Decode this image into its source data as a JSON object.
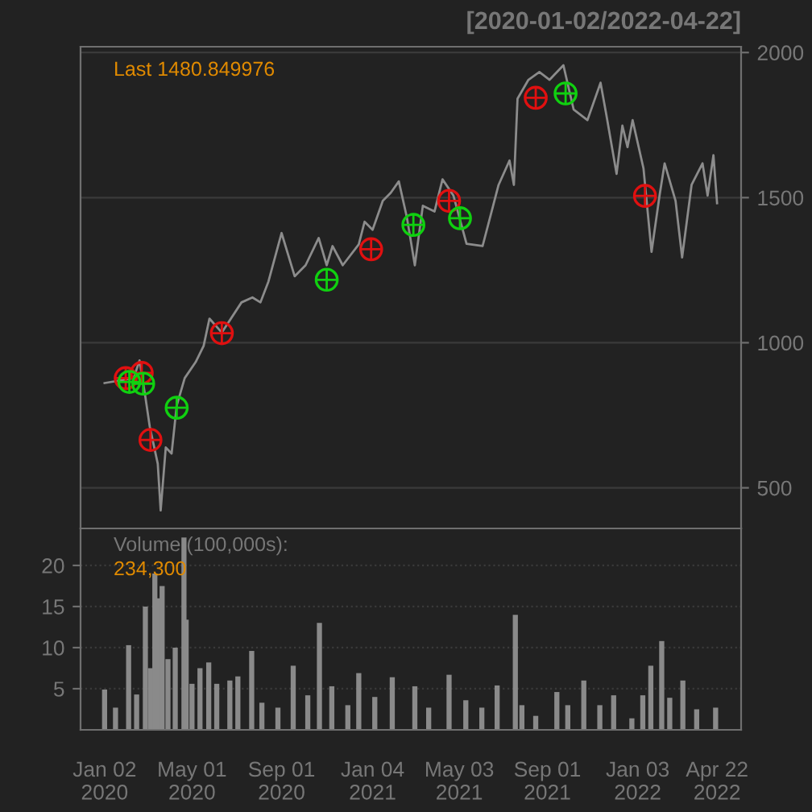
{
  "chart_data": [
    {
      "type": "line",
      "title": "[2020-01-02/2022-04-22]",
      "annotations": [
        "Last 1480.849976"
      ],
      "series": [
        {
          "type": "line",
          "color": "#8c8c8c",
          "x": [
            "2020-01-02",
            "2020-02-11",
            "2020-02-19",
            "2020-02-27",
            "2020-03-04",
            "2020-03-15",
            "2020-03-19",
            "2020-03-26",
            "2020-04-03",
            "2020-04-10",
            "2020-04-21",
            "2020-05-06",
            "2020-05-17",
            "2020-05-25",
            "2020-06-11",
            "2020-07-08",
            "2020-07-23",
            "2020-08-03",
            "2020-08-14",
            "2020-09-01",
            "2020-09-19",
            "2020-10-04",
            "2020-10-22",
            "2020-11-02",
            "2020-11-10",
            "2020-11-24",
            "2020-12-16",
            "2020-12-24",
            "2021-01-04",
            "2021-01-18",
            "2021-01-29",
            "2021-02-09",
            "2021-02-20",
            "2021-03-03",
            "2021-03-14",
            "2021-03-30",
            "2021-04-10",
            "2021-04-25",
            "2021-05-13",
            "2021-06-04",
            "2021-06-26",
            "2021-07-11",
            "2021-07-17",
            "2021-07-22",
            "2021-08-06",
            "2021-08-21",
            "2021-09-04",
            "2021-09-23",
            "2021-10-07",
            "2021-10-26",
            "2021-11-13",
            "2021-11-21",
            "2021-12-05",
            "2021-12-13",
            "2021-12-20",
            "2021-12-27",
            "2022-01-11",
            "2022-01-22",
            "2022-02-02",
            "2022-02-09",
            "2022-02-24",
            "2022-03-05",
            "2022-03-18",
            "2022-04-02",
            "2022-04-09",
            "2022-04-17",
            "2022-04-22"
          ],
          "values": [
            861,
            878,
            939,
            813,
            711,
            583,
            422,
            639,
            618,
            783,
            878,
            933,
            989,
            1083,
            1035,
            1139,
            1156,
            1139,
            1211,
            1378,
            1229,
            1267,
            1361,
            1267,
            1333,
            1267,
            1339,
            1417,
            1389,
            1489,
            1517,
            1556,
            1433,
            1267,
            1472,
            1452,
            1563,
            1507,
            1341,
            1333,
            1544,
            1628,
            1544,
            1841,
            1906,
            1933,
            1906,
            1956,
            1804,
            1767,
            1896,
            1785,
            1582,
            1748,
            1674,
            1767,
            1600,
            1313,
            1507,
            1618,
            1489,
            1294,
            1544,
            1618,
            1507,
            1646,
            1481
          ]
        },
        {
          "type": "scatter",
          "marker": "circle",
          "color": "#e01010",
          "x": [
            "2020-01-31",
            "2020-02-22",
            "2020-03-05",
            "2020-06-11",
            "2021-01-02",
            "2021-04-19",
            "2021-08-16",
            "2022-01-13"
          ],
          "values": [
            878,
            896,
            665,
            1033,
            1322,
            1489,
            1844,
            1506
          ]
        },
        {
          "type": "scatter",
          "marker": "circle",
          "color": "#10d010",
          "x": [
            "2020-02-05",
            "2020-02-24",
            "2020-04-10",
            "2020-11-02",
            "2021-03-01",
            "2021-05-04",
            "2021-09-26"
          ],
          "values": [
            865,
            859,
            776,
            1217,
            1406,
            1429,
            1859
          ]
        }
      ],
      "xlim": [
        "2019-11-30",
        "2022-05-25"
      ],
      "ylim": [
        360,
        2020
      ],
      "yticks": [
        500,
        1000,
        1500,
        2000
      ],
      "grid": "y",
      "tick_labels": "y"
    },
    {
      "type": "bar",
      "annotations": [
        "Volume (100,000s):",
        "234,300"
      ],
      "color": "#8a8a8a",
      "x": [
        "2020-01-02",
        "2020-01-17",
        "2020-02-04",
        "2020-02-15",
        "2020-02-27",
        "2020-03-05",
        "2020-03-11",
        "2020-03-15",
        "2020-03-21",
        "2020-03-29",
        "2020-04-08",
        "2020-04-20",
        "2020-04-23",
        "2020-05-01",
        "2020-05-12",
        "2020-05-24",
        "2020-06-04",
        "2020-06-22",
        "2020-07-03",
        "2020-07-22",
        "2020-08-05",
        "2020-08-27",
        "2020-09-17",
        "2020-10-07",
        "2020-10-23",
        "2020-11-09",
        "2020-12-01",
        "2020-12-16",
        "2021-01-07",
        "2021-01-31",
        "2021-03-03",
        "2021-03-22",
        "2021-04-19",
        "2021-05-12",
        "2021-06-03",
        "2021-06-24",
        "2021-07-19",
        "2021-07-28",
        "2021-08-16",
        "2021-09-14",
        "2021-09-29",
        "2021-10-21",
        "2021-11-12",
        "2021-12-01",
        "2021-12-26",
        "2022-01-10",
        "2022-01-21",
        "2022-02-05",
        "2022-02-16",
        "2022-03-06",
        "2022-03-25",
        "2022-04-20"
      ],
      "values": [
        4.9,
        2.7,
        10.3,
        4.3,
        15,
        7.5,
        19,
        16,
        17.5,
        8.6,
        10,
        23.4,
        13.4,
        5.6,
        7.5,
        8.2,
        5.6,
        6,
        6.5,
        9.6,
        3.3,
        2.7,
        7.8,
        4.2,
        13,
        5.3,
        3.0,
        6.9,
        4,
        6.4,
        5.3,
        2.7,
        6.7,
        3.6,
        2.7,
        5.4,
        14,
        3,
        1.7,
        4.6,
        3,
        6,
        3,
        4.2,
        1.4,
        4.2,
        7.8,
        10.8,
        3.9,
        6,
        2.5,
        2.7
      ],
      "xlim": [
        "2019-11-30",
        "2022-05-25"
      ],
      "ylim": [
        0,
        24.5
      ],
      "yticks": [
        5,
        10,
        15,
        20
      ],
      "grid": "y",
      "xticks": [
        {
          "value": "2020-01-02",
          "label": "Jan 02\n2020"
        },
        {
          "value": "2020-05-01",
          "label": "May 01\n2020"
        },
        {
          "value": "2020-09-01",
          "label": "Sep 01\n2020"
        },
        {
          "value": "2021-01-04",
          "label": "Jan 04\n2021"
        },
        {
          "value": "2021-05-03",
          "label": "May 03\n2021"
        },
        {
          "value": "2021-09-01",
          "label": "Sep 01\n2021"
        },
        {
          "value": "2022-01-03",
          "label": "Jan 03\n2022"
        },
        {
          "value": "2022-04-22",
          "label": "Apr 22\n2022"
        }
      ]
    }
  ]
}
